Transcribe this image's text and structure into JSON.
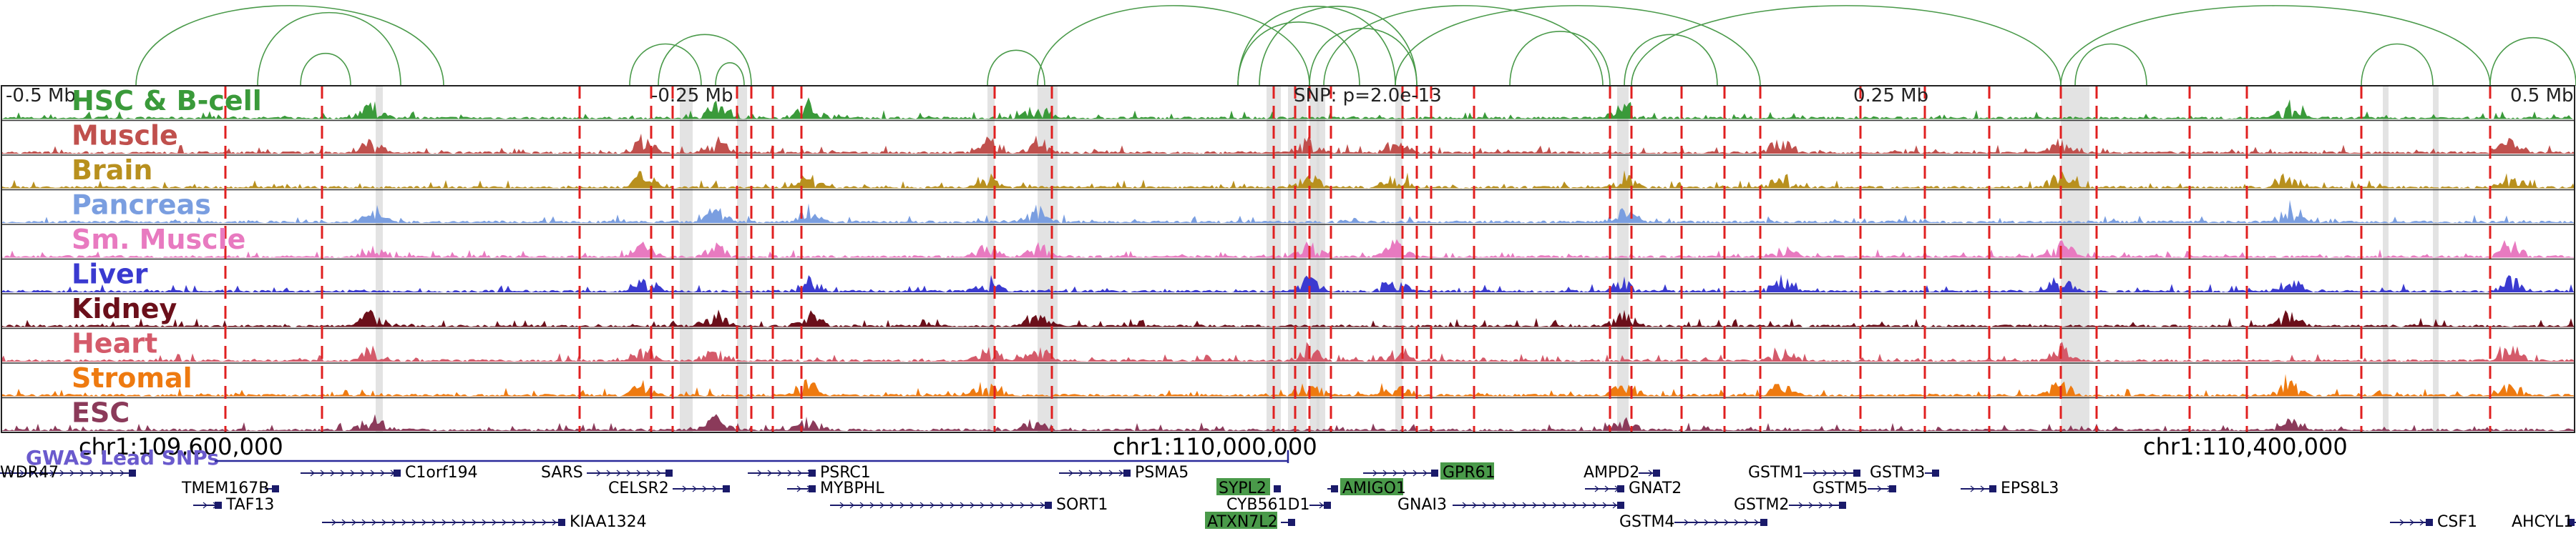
{
  "axis": {
    "labels": [
      "-0.5 Mb",
      "-0.25 Mb",
      "SNP: p=2.0e-13",
      "0.25 Mb",
      "0.5 Mb"
    ]
  },
  "tracks": [
    {
      "name": "HSC & B-cell",
      "color": "#3a9a3a"
    },
    {
      "name": "Muscle",
      "color": "#c0504d"
    },
    {
      "name": "Brain",
      "color": "#b8901e"
    },
    {
      "name": "Pancreas",
      "color": "#7a9ee0"
    },
    {
      "name": "Sm. Muscle",
      "color": "#e87ac0"
    },
    {
      "name": "Liver",
      "color": "#3a3ad0"
    },
    {
      "name": "Kidney",
      "color": "#6b0f1a"
    },
    {
      "name": "Heart",
      "color": "#d45a6a"
    },
    {
      "name": "Stromal",
      "color": "#ee7a10"
    },
    {
      "name": "ESC",
      "color": "#8b3a5a"
    }
  ],
  "coordinates": [
    "chr1:109,600,000",
    "chr1:110,000,000",
    "chr1:110,400,000"
  ],
  "gwas_label": "GWAS Lead SNPs",
  "genes": [
    {
      "name": "WDR47",
      "row": 0,
      "highlight": false
    },
    {
      "name": "C1orf194",
      "row": 0,
      "highlight": false
    },
    {
      "name": "SARS",
      "row": 0,
      "highlight": false
    },
    {
      "name": "PSRC1",
      "row": 0,
      "highlight": false
    },
    {
      "name": "PSMA5",
      "row": 0,
      "highlight": false
    },
    {
      "name": "GPR61",
      "row": 0,
      "highlight": true
    },
    {
      "name": "AMPD2",
      "row": 0,
      "highlight": false
    },
    {
      "name": "GSTM1",
      "row": 0,
      "highlight": false
    },
    {
      "name": "GSTM3",
      "row": 0,
      "highlight": false
    },
    {
      "name": "TMEM167B",
      "row": 1,
      "highlight": false
    },
    {
      "name": "CELSR2",
      "row": 1,
      "highlight": false
    },
    {
      "name": "MYBPHL",
      "row": 1,
      "highlight": false
    },
    {
      "name": "SYPL2",
      "row": 1,
      "highlight": true
    },
    {
      "name": "AMIGO1",
      "row": 1,
      "highlight": true
    },
    {
      "name": "GNAT2",
      "row": 1,
      "highlight": false
    },
    {
      "name": "GSTM5",
      "row": 1,
      "highlight": false
    },
    {
      "name": "EPS8L3",
      "row": 1,
      "highlight": false
    },
    {
      "name": "TAF13",
      "row": 2,
      "highlight": false
    },
    {
      "name": "SORT1",
      "row": 2,
      "highlight": false
    },
    {
      "name": "CYB561D1",
      "row": 2,
      "highlight": false
    },
    {
      "name": "GNAI3",
      "row": 2,
      "highlight": false
    },
    {
      "name": "GSTM2",
      "row": 2,
      "highlight": false
    },
    {
      "name": "KIAA1324",
      "row": 3,
      "highlight": false
    },
    {
      "name": "ATXN7L2",
      "row": 3,
      "highlight": true
    },
    {
      "name": "GSTM4",
      "row": 3,
      "highlight": false
    },
    {
      "name": "CSF1",
      "row": 3,
      "highlight": false
    },
    {
      "name": "AHCYL1",
      "row": 3,
      "highlight": false
    }
  ],
  "colors": {
    "loops": "#4a9a4a",
    "gwas_line": "#2a2a9a",
    "gene_model": "#1a1a6a",
    "snp_line": "#e02020",
    "highlight_band": "#d9d9d9",
    "gene_highlight_bg": "#4a9a4a"
  }
}
